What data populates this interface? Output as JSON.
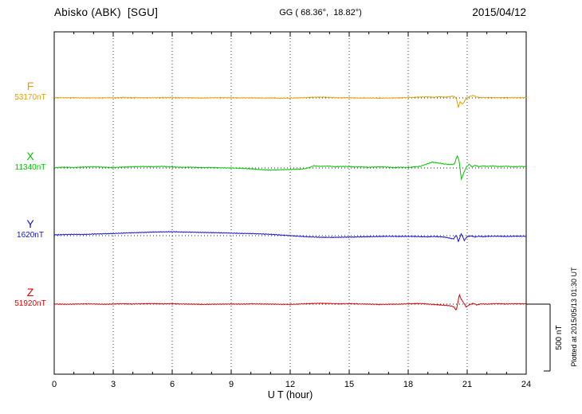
{
  "header": {
    "station": "Abisko (ABK)  [SGU]",
    "coords": "GG ( 68.36°,  18.82°)",
    "date": "2015/04/12"
  },
  "plotted_at_note": "Plotted at 2015/05/13 01:30 UT",
  "chart_data": {
    "type": "line",
    "title": "Magnetogram  Abisko (ABK) [SGU]  2015/04/12",
    "xlabel": "U T (hour)",
    "x_range": [
      0,
      24
    ],
    "x_ticks": [
      0,
      3,
      6,
      9,
      12,
      15,
      18,
      21,
      24
    ],
    "grid": "vertical dotted lines every 3 hours; dotted zero baseline for each trace",
    "scale_bar": {
      "label": "500 nT",
      "nT": 500
    },
    "y_unit": "nT deviation from listed baseline value",
    "series": [
      {
        "name": "F",
        "base_label": "53170nT",
        "base_nT": 53170,
        "color": "#e8a000",
        "points": [
          [
            0,
            2
          ],
          [
            0.5,
            1
          ],
          [
            1,
            2
          ],
          [
            1.5,
            0
          ],
          [
            2,
            1
          ],
          [
            3,
            1
          ],
          [
            3.5,
            3
          ],
          [
            4,
            2
          ],
          [
            5,
            1
          ],
          [
            5.5,
            3
          ],
          [
            6,
            2
          ],
          [
            7,
            1
          ],
          [
            7.5,
            -1
          ],
          [
            8,
            1
          ],
          [
            9,
            2
          ],
          [
            9.5,
            0
          ],
          [
            10,
            1
          ],
          [
            10.5,
            -1
          ],
          [
            11,
            0
          ],
          [
            11.5,
            -2
          ],
          [
            12,
            -1
          ],
          [
            12.5,
            1
          ],
          [
            13,
            4
          ],
          [
            13.5,
            6
          ],
          [
            14,
            4
          ],
          [
            14.5,
            1
          ],
          [
            15,
            2
          ],
          [
            15.5,
            -1
          ],
          [
            16,
            0
          ],
          [
            16.5,
            -2
          ],
          [
            17,
            -1
          ],
          [
            17.5,
            1
          ],
          [
            18,
            3
          ],
          [
            18.5,
            6
          ],
          [
            19,
            8
          ],
          [
            19.3,
            5
          ],
          [
            19.6,
            9
          ],
          [
            19.9,
            6
          ],
          [
            20.1,
            10
          ],
          [
            20.3,
            14
          ],
          [
            20.45,
            -5
          ],
          [
            20.55,
            -70
          ],
          [
            20.65,
            -25
          ],
          [
            20.75,
            -50
          ],
          [
            20.9,
            -15
          ],
          [
            21.1,
            10
          ],
          [
            21.3,
            18
          ],
          [
            21.5,
            6
          ],
          [
            21.8,
            2
          ],
          [
            22,
            4
          ],
          [
            22.5,
            2
          ],
          [
            23,
            3
          ],
          [
            23.5,
            2
          ],
          [
            24,
            3
          ]
        ]
      },
      {
        "name": "X",
        "base_label": "11340nT",
        "base_nT": 11340,
        "color": "#00c400",
        "points": [
          [
            0,
            3
          ],
          [
            0.5,
            6
          ],
          [
            1,
            4
          ],
          [
            1.5,
            7
          ],
          [
            2,
            9
          ],
          [
            2.5,
            6
          ],
          [
            3,
            4
          ],
          [
            3.5,
            7
          ],
          [
            4,
            9
          ],
          [
            4.5,
            11
          ],
          [
            5,
            9
          ],
          [
            5.5,
            12
          ],
          [
            6,
            8
          ],
          [
            6.5,
            5
          ],
          [
            7,
            6
          ],
          [
            7.5,
            3
          ],
          [
            8,
            4
          ],
          [
            8.5,
            1
          ],
          [
            9,
            0
          ],
          [
            9.5,
            -3
          ],
          [
            10,
            -6
          ],
          [
            10.5,
            -12
          ],
          [
            11,
            -16
          ],
          [
            11.5,
            -13
          ],
          [
            12,
            -11
          ],
          [
            12.5,
            -9
          ],
          [
            12.8,
            -4
          ],
          [
            13,
            6
          ],
          [
            13.2,
            16
          ],
          [
            13.5,
            13
          ],
          [
            14,
            14
          ],
          [
            14.3,
            9
          ],
          [
            14.6,
            12
          ],
          [
            15,
            11
          ],
          [
            15.3,
            7
          ],
          [
            15.6,
            9
          ],
          [
            16,
            5
          ],
          [
            16.5,
            9
          ],
          [
            17,
            6
          ],
          [
            17.3,
            3
          ],
          [
            17.6,
            6
          ],
          [
            18,
            4
          ],
          [
            18.3,
            8
          ],
          [
            18.6,
            12
          ],
          [
            19,
            32
          ],
          [
            19.2,
            44
          ],
          [
            19.4,
            40
          ],
          [
            19.6,
            36
          ],
          [
            19.8,
            30
          ],
          [
            20,
            28
          ],
          [
            20.2,
            26
          ],
          [
            20.35,
            30
          ],
          [
            20.5,
            95
          ],
          [
            20.6,
            45
          ],
          [
            20.7,
            -85
          ],
          [
            20.8,
            -45
          ],
          [
            20.95,
            5
          ],
          [
            21.1,
            28
          ],
          [
            21.25,
            8
          ],
          [
            21.4,
            20
          ],
          [
            21.6,
            10
          ],
          [
            21.8,
            16
          ],
          [
            22,
            12
          ],
          [
            22.3,
            15
          ],
          [
            22.6,
            11
          ],
          [
            23,
            13
          ],
          [
            23.4,
            9
          ],
          [
            23.7,
            12
          ],
          [
            24,
            10
          ]
        ]
      },
      {
        "name": "Y",
        "base_label": "1620nT",
        "base_nT": 1620,
        "color": "#1010e0",
        "points": [
          [
            0,
            6
          ],
          [
            0.5,
            8
          ],
          [
            1,
            10
          ],
          [
            1.5,
            9
          ],
          [
            2,
            12
          ],
          [
            2.5,
            14
          ],
          [
            3,
            16
          ],
          [
            3.5,
            19
          ],
          [
            4,
            22
          ],
          [
            4.5,
            24
          ],
          [
            5,
            27
          ],
          [
            5.5,
            28
          ],
          [
            6,
            29
          ],
          [
            6.5,
            27
          ],
          [
            7,
            26
          ],
          [
            7.5,
            24
          ],
          [
            8,
            23
          ],
          [
            8.5,
            21
          ],
          [
            9,
            19
          ],
          [
            9.5,
            17
          ],
          [
            10,
            16
          ],
          [
            10.5,
            13
          ],
          [
            11,
            10
          ],
          [
            11.5,
            5
          ],
          [
            12,
            0
          ],
          [
            12.5,
            -5
          ],
          [
            13,
            -9
          ],
          [
            13.5,
            -12
          ],
          [
            14,
            -13
          ],
          [
            14.5,
            -12
          ],
          [
            15,
            -11
          ],
          [
            15.5,
            -9
          ],
          [
            16,
            -8
          ],
          [
            16.5,
            -6
          ],
          [
            17,
            -5
          ],
          [
            17.5,
            -6
          ],
          [
            18,
            -5
          ],
          [
            18.5,
            -7
          ],
          [
            19,
            -9
          ],
          [
            19.3,
            -6
          ],
          [
            19.6,
            -8
          ],
          [
            19.9,
            -12
          ],
          [
            20.1,
            -18
          ],
          [
            20.3,
            -25
          ],
          [
            20.45,
            5
          ],
          [
            20.55,
            -45
          ],
          [
            20.7,
            15
          ],
          [
            20.85,
            -35
          ],
          [
            21,
            -8
          ],
          [
            21.2,
            -2
          ],
          [
            21.4,
            -10
          ],
          [
            21.6,
            -4
          ],
          [
            21.8,
            -8
          ],
          [
            22,
            -5
          ],
          [
            22.5,
            -4
          ],
          [
            23,
            -6
          ],
          [
            23.5,
            -4
          ],
          [
            24,
            -5
          ]
        ]
      },
      {
        "name": "Z",
        "base_label": "51920nT",
        "base_nT": 51920,
        "color": "#e00000",
        "points": [
          [
            0,
            1
          ],
          [
            0.5,
            -1
          ],
          [
            1,
            0
          ],
          [
            1.5,
            2
          ],
          [
            2,
            1
          ],
          [
            2.5,
            -1
          ],
          [
            3,
            1
          ],
          [
            3.5,
            3
          ],
          [
            4,
            1
          ],
          [
            4.5,
            3
          ],
          [
            5,
            4
          ],
          [
            5.5,
            2
          ],
          [
            6,
            3
          ],
          [
            6.5,
            1
          ],
          [
            7,
            0
          ],
          [
            7.5,
            -2
          ],
          [
            8,
            -1
          ],
          [
            8.5,
            0
          ],
          [
            9,
            1
          ],
          [
            9.5,
            0
          ],
          [
            10,
            2
          ],
          [
            10.5,
            1
          ],
          [
            11,
            0
          ],
          [
            11.5,
            -1
          ],
          [
            12,
            -2
          ],
          [
            12.5,
            1
          ],
          [
            13,
            4
          ],
          [
            13.5,
            6
          ],
          [
            14,
            5
          ],
          [
            14.5,
            2
          ],
          [
            15,
            4
          ],
          [
            15.5,
            1
          ],
          [
            16,
            0
          ],
          [
            16.5,
            -2
          ],
          [
            17,
            -1
          ],
          [
            17.5,
            0
          ],
          [
            18,
            2
          ],
          [
            18.5,
            5
          ],
          [
            19,
            1
          ],
          [
            19.3,
            -3
          ],
          [
            19.6,
            -6
          ],
          [
            19.9,
            -9
          ],
          [
            20.1,
            -12
          ],
          [
            20.3,
            -18
          ],
          [
            20.45,
            -45
          ],
          [
            20.6,
            70
          ],
          [
            20.7,
            35
          ],
          [
            20.8,
            15
          ],
          [
            20.95,
            -22
          ],
          [
            21.1,
            -5
          ],
          [
            21.3,
            6
          ],
          [
            21.5,
            -6
          ],
          [
            21.7,
            2
          ],
          [
            22,
            0
          ],
          [
            22.5,
            4
          ],
          [
            23,
            1
          ],
          [
            23.5,
            3
          ],
          [
            24,
            2
          ]
        ]
      }
    ]
  }
}
